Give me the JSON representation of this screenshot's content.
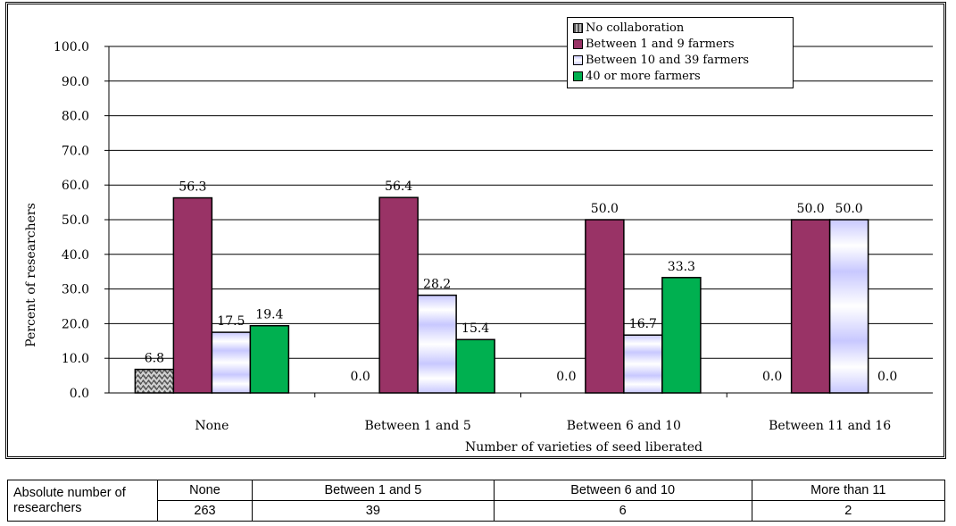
{
  "chart_data": {
    "type": "bar",
    "title": "",
    "xlabel": "Number of varieties of seed liberated",
    "ylabel": "Percent of researchers",
    "ylim": [
      0,
      100
    ],
    "yticks": [
      "0.0",
      "10.0",
      "20.0",
      "30.0",
      "40.0",
      "50.0",
      "60.0",
      "70.0",
      "80.0",
      "90.0",
      "100.0"
    ],
    "categories": [
      "None",
      "Between 1 and 5",
      "Between 6 and 10",
      "Between 11 and 16"
    ],
    "series": [
      {
        "name": "No collaboration",
        "values": [
          6.8,
          0.0,
          0.0,
          0.0
        ],
        "labels": [
          "6.8",
          "0.0",
          "0.0",
          "0.0"
        ]
      },
      {
        "name": "Between 1 and 9 farmers",
        "values": [
          56.3,
          56.4,
          50.0,
          50.0
        ],
        "labels": [
          "56.3",
          "56.4",
          "50.0",
          "50.0"
        ]
      },
      {
        "name": "Between 10 and 39 farmers",
        "values": [
          17.5,
          28.2,
          16.7,
          50.0
        ],
        "labels": [
          "17.5",
          "28.2",
          "16.7",
          "50.0"
        ]
      },
      {
        "name": "40 or more farmers",
        "values": [
          19.4,
          15.4,
          33.3,
          0.0
        ],
        "labels": [
          "19.4",
          "15.4",
          "33.3",
          "0.0"
        ]
      }
    ],
    "grid": true,
    "legend_position": "top-right",
    "colors": [
      "#777777",
      "#993366",
      "#ccccff",
      "#00b050"
    ]
  },
  "table": {
    "row_header": "Absolute number of researchers",
    "columns": [
      "None",
      "Between 1 and 5",
      "Between 6 and 10",
      "More than 11"
    ],
    "counts": [
      "263",
      "39",
      "6",
      "2"
    ]
  }
}
